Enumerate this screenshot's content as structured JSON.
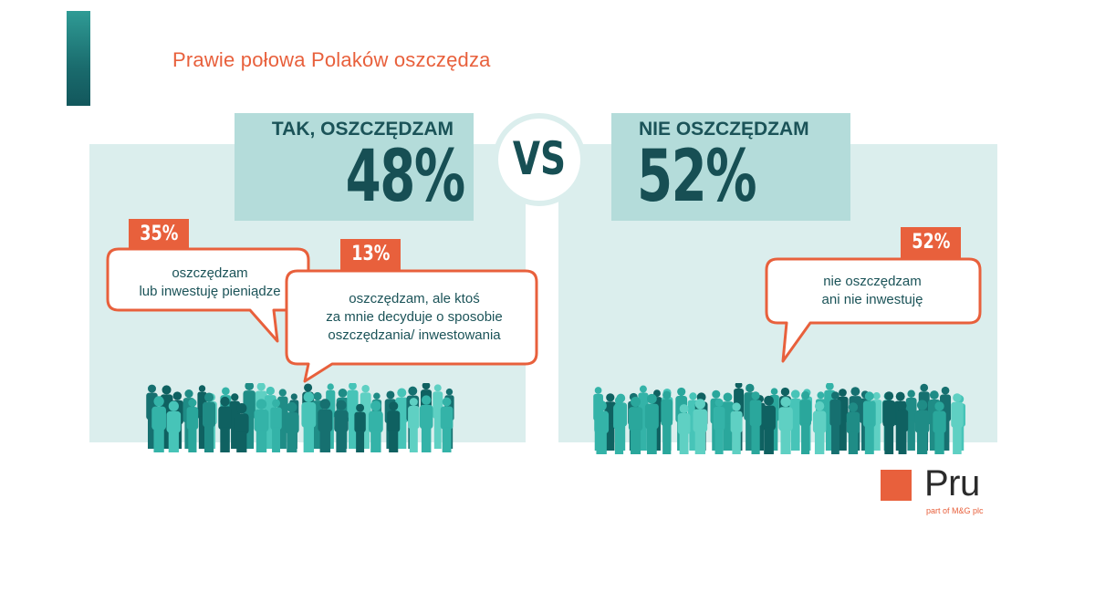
{
  "title": "Prawie połowa Polaków oszczędza",
  "left": {
    "label": "TAK, OSZCZĘDZAM",
    "value": "48%",
    "bubbles": [
      {
        "badge": "35%",
        "line1": "oszczędzam",
        "line2": "lub inwestuję pieniądze"
      },
      {
        "badge": "13%",
        "line1": "oszczędzam, ale ktoś",
        "line2": "za mnie decyduje o sposobie",
        "line3": "oszczędzania/ inwestowania"
      }
    ]
  },
  "vs": "VS",
  "right": {
    "label": "NIE OSZCZĘDZAM",
    "value": "52%",
    "bubbles": [
      {
        "badge": "52%",
        "line1": "nie oszczędzam",
        "line2": "ani nie inwestuję"
      }
    ]
  },
  "logo": {
    "word": "Pru",
    "sub": "part of M&G plc"
  },
  "colors": {
    "accent": "#e8603c",
    "teal_dark": "#174f54",
    "teal_light": "#dbeeed",
    "teal_mid": "#b4dcda"
  }
}
